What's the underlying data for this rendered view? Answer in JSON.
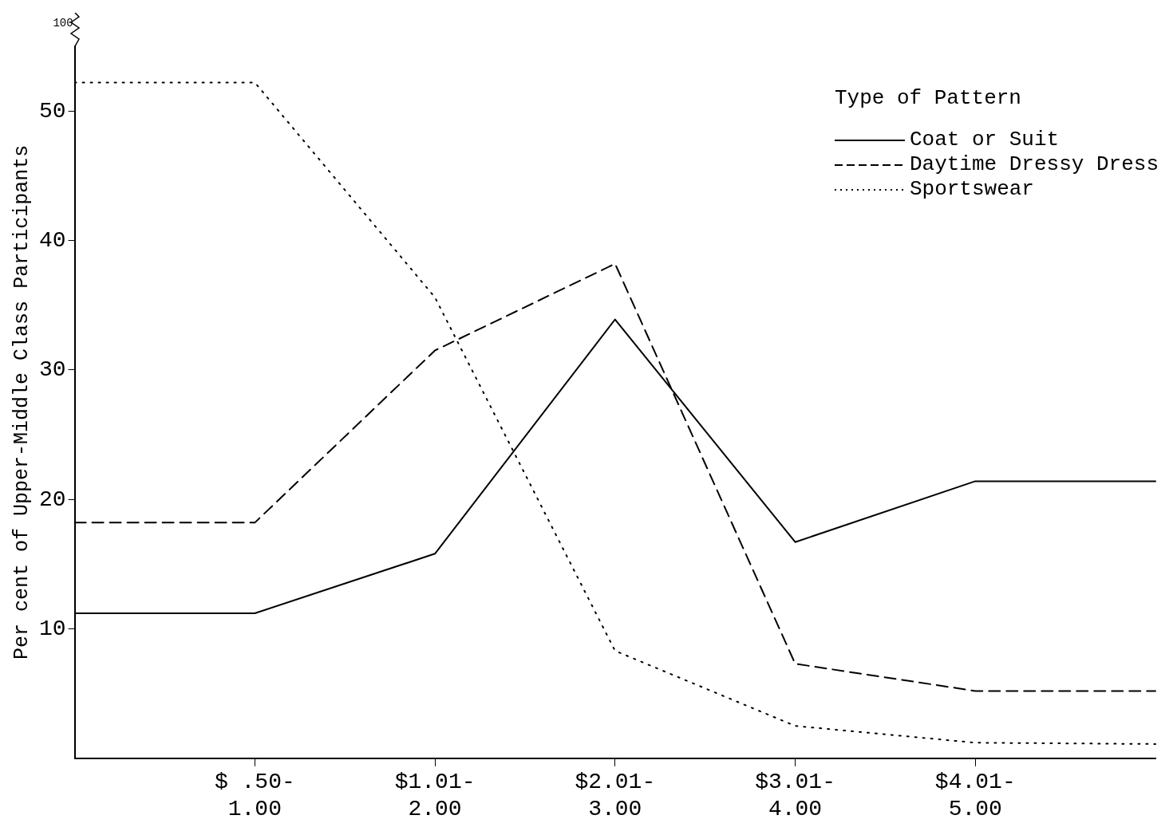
{
  "chart_data": {
    "type": "line",
    "ylabel": "Per cent of Upper-Middle Class Participants",
    "legend_title": "Type of Pattern",
    "legend": "top right",
    "grid": false,
    "marker": "none",
    "categories": [
      null,
      "$ .50-1.00",
      "$1.01-2.00",
      "$2.01-3.00",
      "$3.01-4.00",
      "$4.01-5.00",
      null
    ],
    "ylim": [
      0,
      55
    ],
    "yticks": [
      10,
      20,
      30,
      40,
      50
    ],
    "annotations": [
      "100"
    ],
    "series": [
      {
        "name": "Coat or Suit",
        "color": "#000000",
        "line_style": "solid",
        "values": [
          11.2,
          11.2,
          15.8,
          33.9,
          16.7,
          21.4,
          21.4
        ]
      },
      {
        "name": "Daytime Dressy Dress",
        "color": "#000000",
        "line_style": "dashed",
        "values": [
          18.2,
          18.2,
          31.5,
          38.2,
          7.3,
          5.2,
          5.2
        ]
      },
      {
        "name": "Sportswear",
        "color": "#000000",
        "line_style": "dotted",
        "values": [
          52.2,
          52.2,
          35.6,
          8.3,
          2.5,
          1.2,
          1.1
        ]
      }
    ]
  }
}
